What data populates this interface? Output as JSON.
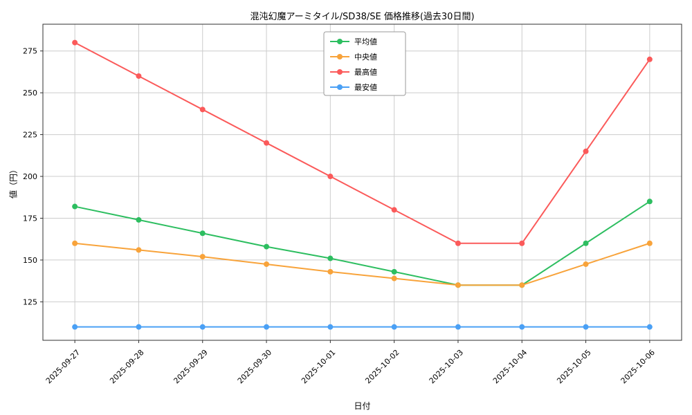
{
  "chart_data": {
    "type": "line",
    "title": "混沌幻魔アーミタイル/SD38/SE 価格推移(過去30日間)",
    "xlabel": "日付",
    "ylabel": "値（円）",
    "categories": [
      "2025-09-27",
      "2025-09-28",
      "2025-09-29",
      "2025-09-30",
      "2025-10-01",
      "2025-10-02",
      "2025-10-03",
      "2025-10-04",
      "2025-10-05",
      "2025-10-06"
    ],
    "series": [
      {
        "key": "average",
        "name": "平均値",
        "color": "#2dbe60",
        "values": [
          182,
          174,
          166,
          158,
          151,
          143,
          135,
          135,
          160,
          185
        ]
      },
      {
        "key": "median",
        "name": "中央値",
        "color": "#f8a33a",
        "values": [
          160,
          156,
          152,
          147.5,
          143,
          139,
          135,
          135,
          147.5,
          160
        ]
      },
      {
        "key": "max",
        "name": "最高値",
        "color": "#fb5a5a",
        "values": [
          280,
          260,
          240,
          220,
          200,
          180,
          160,
          160,
          215,
          270
        ]
      },
      {
        "key": "min",
        "name": "最安値",
        "color": "#4aa0f5",
        "values": [
          110,
          110,
          110,
          110,
          110,
          110,
          110,
          110,
          110,
          110
        ]
      }
    ],
    "ylim": [
      102,
      291
    ],
    "yticks": [
      125,
      150,
      175,
      200,
      225,
      250,
      275
    ],
    "grid": true,
    "legend_position": "upper center",
    "colors": {
      "grid": "#cccccc",
      "axis": "#2f2f2f",
      "legend_border": "#9a9a9a",
      "background": "#ffffff"
    }
  }
}
